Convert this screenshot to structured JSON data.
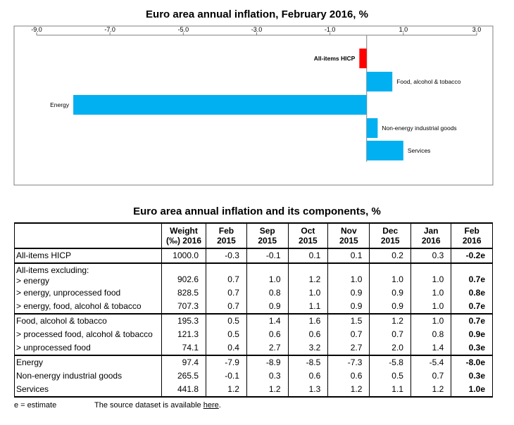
{
  "chart_data": {
    "type": "bar",
    "orientation": "horizontal",
    "title": "Euro area annual inflation, February 2016, %",
    "xlim": [
      -9.0,
      3.0
    ],
    "x_ticks": [
      "-9.0",
      "-7.0",
      "-5.0",
      "-3.0",
      "-1.0",
      "1.0",
      "3.0"
    ],
    "x_tick_values": [
      -9.0,
      -7.0,
      -5.0,
      -3.0,
      -1.0,
      1.0,
      3.0
    ],
    "categories": [
      "All-items HICP",
      "Food, alcohol & tobacco",
      "Energy",
      "Non-energy industrial goods",
      "Services"
    ],
    "values": [
      -0.2,
      0.7,
      -8.0,
      0.3,
      1.0
    ],
    "bar_colors": [
      "#ff0000",
      "#00b0f0",
      "#00b0f0",
      "#00b0f0",
      "#00b0f0"
    ],
    "emphasis": [
      true,
      false,
      false,
      false,
      false
    ],
    "grid": false
  },
  "table": {
    "title": "Euro area annual inflation and its components, %",
    "headers": [
      "",
      "Weight (‰) 2016",
      "Feb 2015",
      "Sep 2015",
      "Oct 2015",
      "Nov 2015",
      "Dec 2015",
      "Jan 2016",
      "Feb 2016"
    ],
    "rows": [
      {
        "label": "All-items HICP",
        "values": [
          "1000.0",
          "-0.3",
          "-0.1",
          "0.1",
          "0.1",
          "0.2",
          "0.3",
          "-0.2e"
        ]
      },
      {
        "label": "All-items excluding:",
        "label2": "> energy",
        "values": [
          "902.6",
          "0.7",
          "1.0",
          "1.2",
          "1.0",
          "1.0",
          "1.0",
          "0.7e"
        ]
      },
      {
        "label": "> energy, unprocessed food",
        "values": [
          "828.5",
          "0.7",
          "0.8",
          "1.0",
          "0.9",
          "0.9",
          "1.0",
          "0.8e"
        ]
      },
      {
        "label": "> energy, food, alcohol & tobacco",
        "values": [
          "707.3",
          "0.7",
          "0.9",
          "1.1",
          "0.9",
          "0.9",
          "1.0",
          "0.7e"
        ]
      },
      {
        "label": "Food, alcohol & tobacco",
        "values": [
          "195.3",
          "0.5",
          "1.4",
          "1.6",
          "1.5",
          "1.2",
          "1.0",
          "0.7e"
        ]
      },
      {
        "label": "> processed food, alcohol & tobacco",
        "values": [
          "121.3",
          "0.5",
          "0.6",
          "0.6",
          "0.7",
          "0.7",
          "0.8",
          "0.9e"
        ]
      },
      {
        "label": "> unprocessed food",
        "values": [
          "74.1",
          "0.4",
          "2.7",
          "3.2",
          "2.7",
          "2.0",
          "1.4",
          "0.3e"
        ]
      },
      {
        "label": "Energy",
        "values": [
          "97.4",
          "-7.9",
          "-8.9",
          "-8.5",
          "-7.3",
          "-5.8",
          "-5.4",
          "-8.0e"
        ]
      },
      {
        "label": "Non-energy industrial goods",
        "values": [
          "265.5",
          "-0.1",
          "0.3",
          "0.6",
          "0.6",
          "0.5",
          "0.7",
          "0.3e"
        ]
      },
      {
        "label": "Services",
        "values": [
          "441.8",
          "1.2",
          "1.2",
          "1.3",
          "1.2",
          "1.1",
          "1.2",
          "1.0e"
        ]
      }
    ]
  },
  "footer": {
    "estimate_note": "e = estimate",
    "source_text": "The source dataset is available ",
    "source_link": "here",
    "source_end": "."
  }
}
